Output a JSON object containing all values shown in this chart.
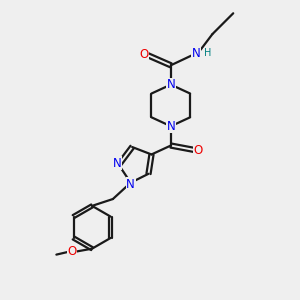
{
  "bg_color": "#efefef",
  "bond_color": "#1a1a1a",
  "N_color": "#0000ee",
  "O_color": "#ee0000",
  "H_color": "#008080",
  "line_width": 1.6,
  "font_size": 8.5,
  "fig_width": 3.0,
  "fig_height": 3.0,
  "dpi": 100,
  "xlim": [
    0,
    10
  ],
  "ylim": [
    0,
    10
  ]
}
